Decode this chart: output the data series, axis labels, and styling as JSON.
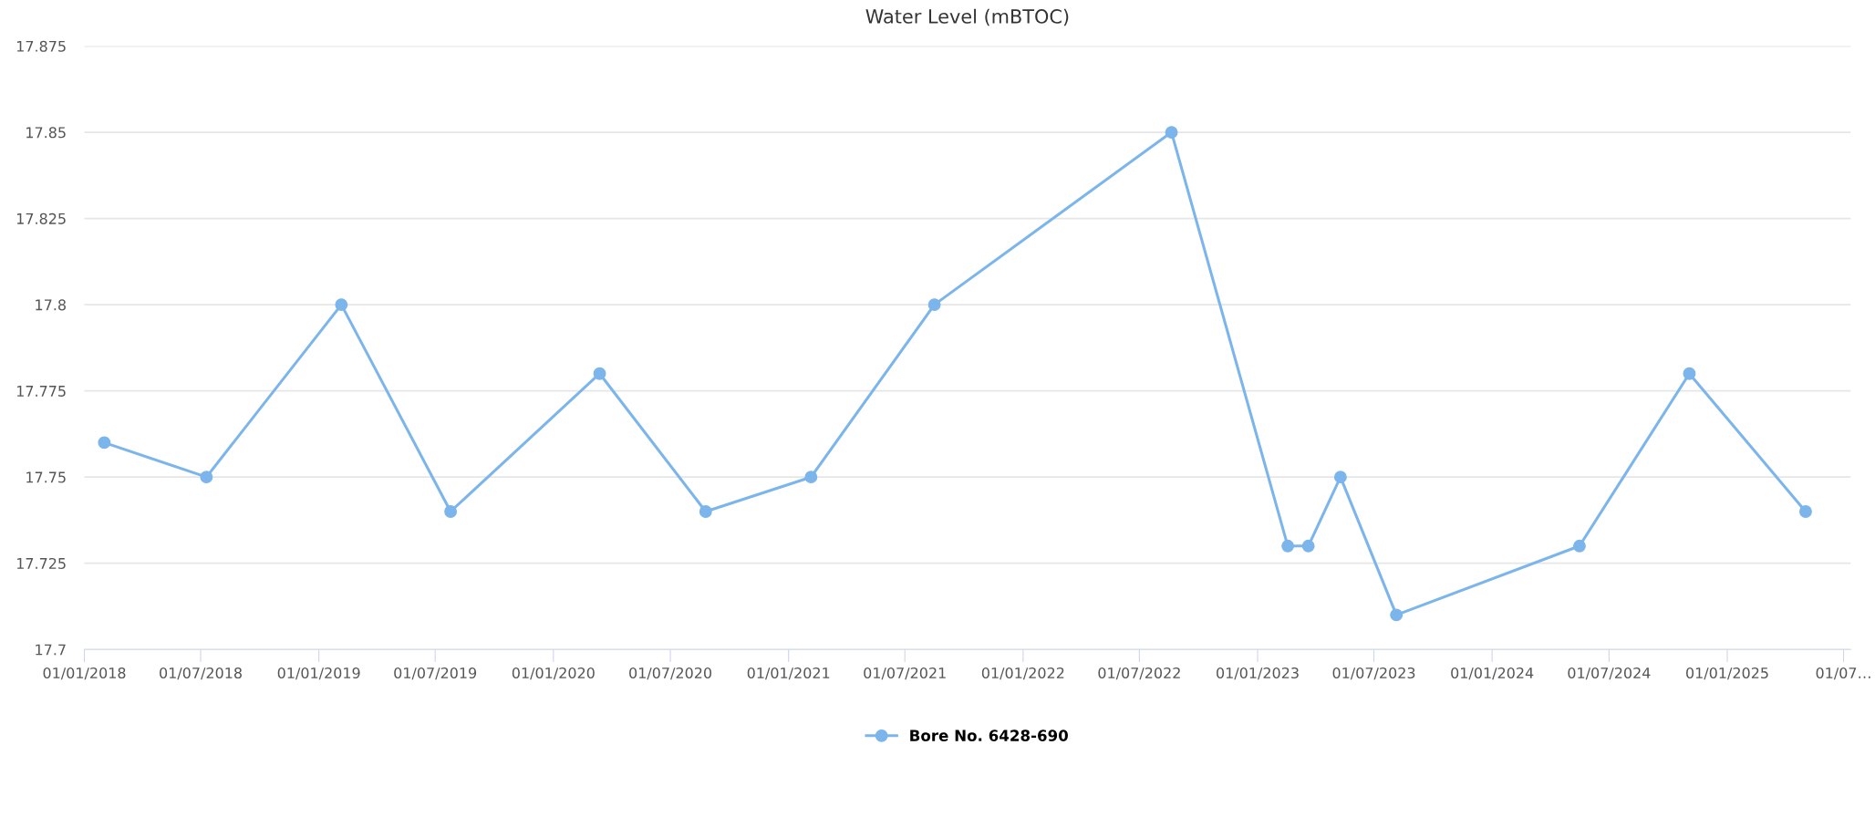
{
  "chart_data": {
    "type": "line",
    "title": "Water Level (mBTOC)",
    "x": [
      "2018-02-01",
      "2018-07-10",
      "2019-02-05",
      "2019-07-25",
      "2020-03-13",
      "2020-08-25",
      "2021-02-05",
      "2021-08-16",
      "2022-08-20",
      "2023-02-17",
      "2023-03-21",
      "2023-05-10",
      "2023-08-05",
      "2024-05-16",
      "2024-11-03",
      "2025-05-03"
    ],
    "series": [
      {
        "name": "Bore No. 6428-690",
        "color": "#7cb5ec",
        "values": [
          17.76,
          17.75,
          17.8,
          17.74,
          17.78,
          17.74,
          17.75,
          17.8,
          17.85,
          17.73,
          17.73,
          17.75,
          17.71,
          17.73,
          17.78,
          17.74
        ]
      }
    ],
    "xlim": [
      "2018-01-01",
      "2025-07-12"
    ],
    "xticks": [
      {
        "value": "2018-01-01",
        "label": "01/01/2018"
      },
      {
        "value": "2018-07-01",
        "label": "01/07/2018"
      },
      {
        "value": "2019-01-01",
        "label": "01/01/2019"
      },
      {
        "value": "2019-07-01",
        "label": "01/07/2019"
      },
      {
        "value": "2020-01-01",
        "label": "01/01/2020"
      },
      {
        "value": "2020-07-01",
        "label": "01/07/2020"
      },
      {
        "value": "2021-01-01",
        "label": "01/01/2021"
      },
      {
        "value": "2021-07-01",
        "label": "01/07/2021"
      },
      {
        "value": "2022-01-01",
        "label": "01/01/2022"
      },
      {
        "value": "2022-07-01",
        "label": "01/07/2022"
      },
      {
        "value": "2023-01-01",
        "label": "01/01/2023"
      },
      {
        "value": "2023-07-01",
        "label": "01/07/2023"
      },
      {
        "value": "2024-01-01",
        "label": "01/01/2024"
      },
      {
        "value": "2024-07-01",
        "label": "01/07/2024"
      },
      {
        "value": "2025-01-01",
        "label": "01/01/2025"
      },
      {
        "value": "2025-07-01",
        "label": "01/07…"
      }
    ],
    "ylim": [
      17.7,
      17.875
    ],
    "yticks": [
      17.7,
      {
        "value": 17.725,
        "label": "17.725"
      },
      17.75,
      17.775,
      17.8,
      17.825,
      17.85,
      17.875
    ],
    "grid": "y",
    "legend": "bottom",
    "marker": "circle",
    "line_style": "solid"
  }
}
